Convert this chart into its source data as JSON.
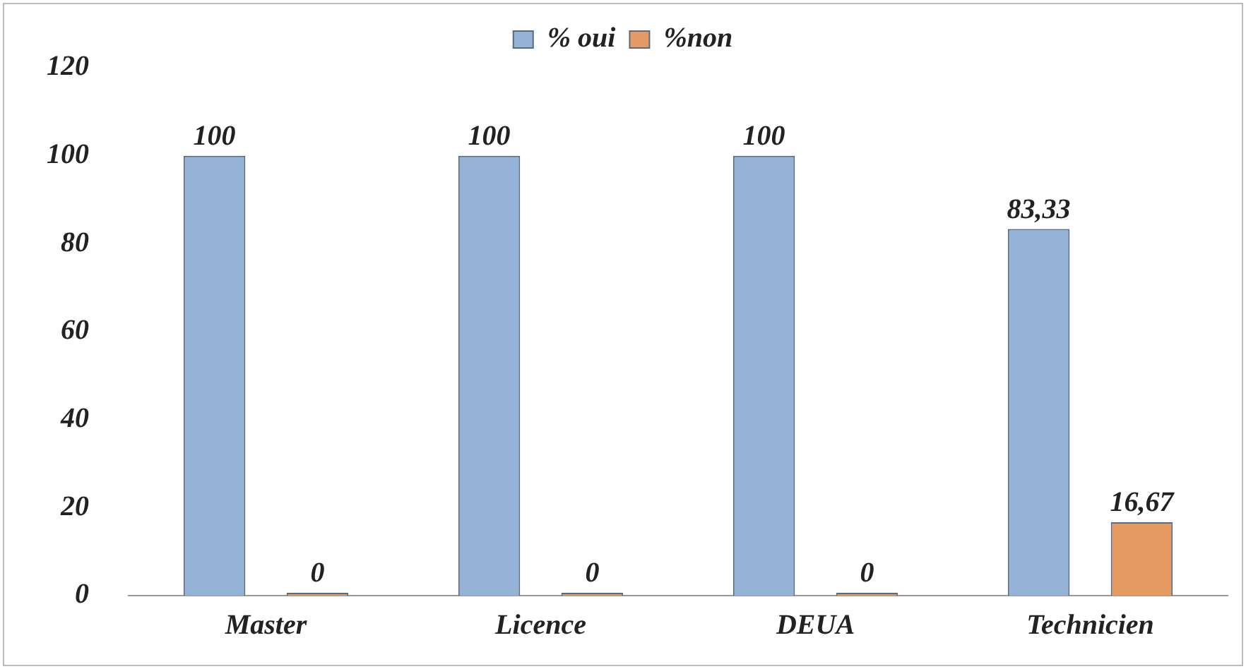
{
  "chart_data": {
    "type": "bar",
    "categories": [
      "Master",
      "Licence",
      "DEUA",
      "Technicien"
    ],
    "series": [
      {
        "name": "% oui",
        "color": "#95b3d7",
        "values": [
          100,
          100,
          100,
          83.33
        ],
        "value_labels": [
          "100",
          "100",
          "100",
          "83,33"
        ]
      },
      {
        "name": "%non",
        "color": "#e59a62",
        "values": [
          0,
          0,
          0,
          16.67
        ],
        "value_labels": [
          "0",
          "0",
          "0",
          "16,67"
        ]
      }
    ],
    "ylim": [
      0,
      120
    ],
    "yticks": [
      0,
      20,
      40,
      60,
      80,
      100,
      120
    ],
    "grid": false,
    "legend": "top"
  }
}
